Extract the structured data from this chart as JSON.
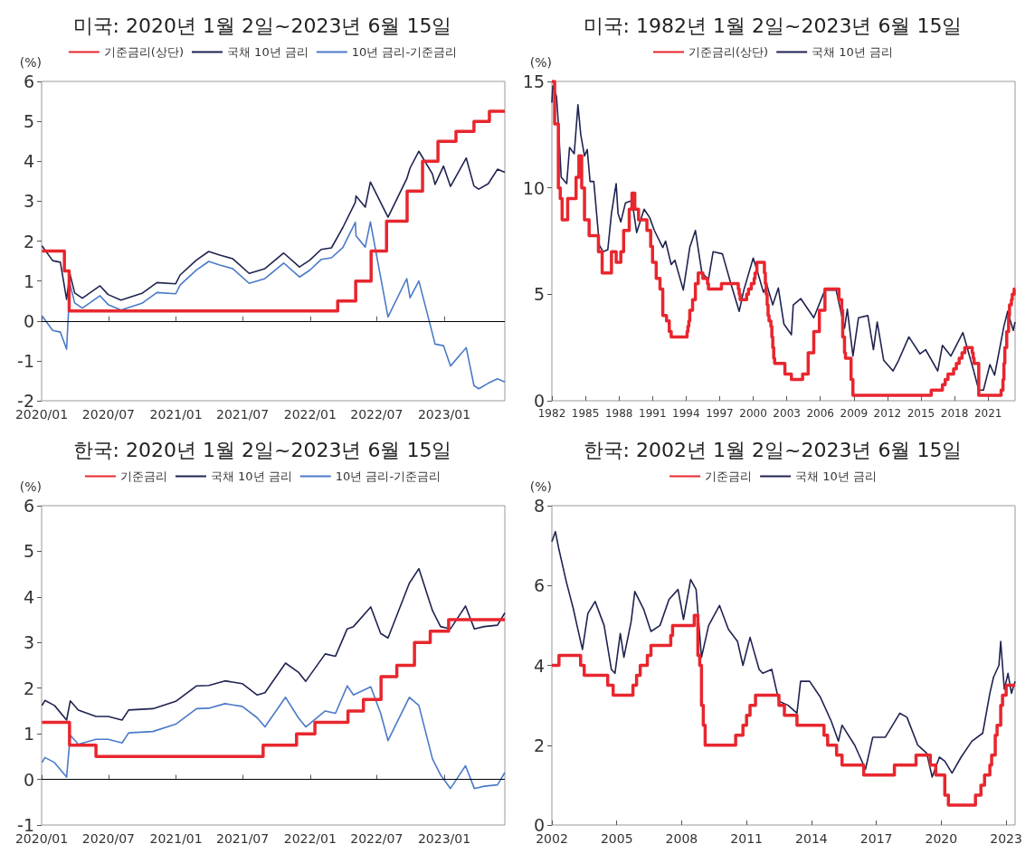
{
  "chart_data": [
    {
      "type": "line",
      "title": "미국: 2020년 1월 2일~2023년 6월 15일",
      "ylabel": "(%)",
      "xlim": [
        "2020-01",
        "2023-06-15"
      ],
      "xticks": [
        {
          "value": "2020-01",
          "label": "2020/01"
        },
        {
          "value": "2020-07",
          "label": "2020/07"
        },
        {
          "value": "2021-01",
          "label": "2021/01"
        },
        {
          "value": "2021-07",
          "label": "2021/07"
        },
        {
          "value": "2022-01",
          "label": "2022/01"
        },
        {
          "value": "2022-07",
          "label": "2022/07"
        },
        {
          "value": "2023-01",
          "label": "2023/01"
        }
      ],
      "ylim": [
        -2,
        6
      ],
      "yticks": [
        -2,
        -1,
        0,
        1,
        2,
        3,
        4,
        5,
        6
      ],
      "legend": "top",
      "grid": false,
      "ref_lines": [
        {
          "axis": "y",
          "value": 0,
          "color": "#000000"
        }
      ],
      "series": [
        {
          "name": "기준금리(상단)",
          "type": "step",
          "color": "#e8262e",
          "x": [
            "2020-01-02",
            "2020-03-03",
            "2020-03-16",
            "2022-03-17",
            "2022-05-05",
            "2022-06-16",
            "2022-07-28",
            "2022-09-22",
            "2022-11-03",
            "2022-12-15",
            "2023-02-02",
            "2023-03-23",
            "2023-05-04",
            "2023-06-15"
          ],
          "values": [
            1.75,
            1.25,
            0.25,
            0.5,
            1.0,
            1.75,
            2.5,
            3.25,
            4.0,
            4.5,
            4.75,
            5.0,
            5.25,
            5.25
          ]
        },
        {
          "name": "국채 10년 금리",
          "type": "line",
          "color": "#1f2350",
          "x": [
            "2020-01-02",
            "2020-01-31",
            "2020-02-21",
            "2020-03-09",
            "2020-03-18",
            "2020-03-31",
            "2020-04-21",
            "2020-06-08",
            "2020-06-30",
            "2020-08-04",
            "2020-09-30",
            "2020-11-10",
            "2020-12-31",
            "2021-01-12",
            "2021-02-25",
            "2021-03-31",
            "2021-04-30",
            "2021-06-04",
            "2021-07-19",
            "2021-08-31",
            "2021-10-21",
            "2021-12-03",
            "2021-12-31",
            "2022-01-31",
            "2022-02-28",
            "2022-03-31",
            "2022-05-04",
            "2022-05-06",
            "2022-05-31",
            "2022-06-14",
            "2022-08-01",
            "2022-09-21",
            "2022-09-30",
            "2022-10-24",
            "2022-11-30",
            "2022-12-07",
            "2022-12-30",
            "2023-01-18",
            "2023-03-02",
            "2023-03-23",
            "2023-04-05",
            "2023-05-01",
            "2023-05-26",
            "2023-06-15"
          ],
          "values": [
            1.88,
            1.51,
            1.47,
            0.54,
            1.18,
            0.7,
            0.57,
            0.88,
            0.66,
            0.52,
            0.69,
            0.96,
            0.93,
            1.15,
            1.52,
            1.74,
            1.65,
            1.56,
            1.19,
            1.31,
            1.7,
            1.35,
            1.52,
            1.79,
            1.83,
            2.34,
            2.97,
            3.13,
            2.85,
            3.48,
            2.6,
            3.56,
            3.83,
            4.25,
            3.68,
            3.42,
            3.88,
            3.37,
            4.08,
            3.38,
            3.3,
            3.44,
            3.8,
            3.72
          ]
        },
        {
          "name": "10년 금리-기준금리",
          "type": "line",
          "color": "#4a7ac8",
          "x": [
            "2020-01-02",
            "2020-01-31",
            "2020-02-21",
            "2020-03-09",
            "2020-03-18",
            "2020-03-31",
            "2020-04-21",
            "2020-06-08",
            "2020-06-30",
            "2020-08-04",
            "2020-09-30",
            "2020-11-10",
            "2020-12-31",
            "2021-01-12",
            "2021-02-25",
            "2021-03-31",
            "2021-04-30",
            "2021-06-04",
            "2021-07-19",
            "2021-08-31",
            "2021-10-21",
            "2021-12-03",
            "2021-12-31",
            "2022-01-31",
            "2022-02-28",
            "2022-03-31",
            "2022-05-04",
            "2022-05-06",
            "2022-05-31",
            "2022-06-14",
            "2022-08-01",
            "2022-09-21",
            "2022-09-30",
            "2022-10-24",
            "2022-11-30",
            "2022-12-07",
            "2022-12-30",
            "2023-01-18",
            "2023-03-02",
            "2023-03-23",
            "2023-04-05",
            "2023-05-01",
            "2023-05-26",
            "2023-06-15"
          ],
          "values": [
            0.13,
            -0.24,
            -0.28,
            -0.71,
            0.93,
            0.45,
            0.32,
            0.63,
            0.41,
            0.27,
            0.44,
            0.71,
            0.68,
            0.9,
            1.27,
            1.49,
            1.4,
            1.31,
            0.94,
            1.06,
            1.45,
            1.1,
            1.27,
            1.54,
            1.58,
            1.84,
            2.47,
            2.13,
            1.85,
            2.48,
            0.1,
            1.06,
            0.58,
            1.0,
            -0.32,
            -0.58,
            -0.62,
            -1.13,
            -0.67,
            -1.62,
            -1.7,
            -1.56,
            -1.45,
            -1.53
          ]
        }
      ]
    },
    {
      "type": "line",
      "title": "미국: 1982년 1월 2일~2023년 6월 15일",
      "ylabel": "(%)",
      "xlim": [
        "1982-01",
        "2023-06"
      ],
      "xticks": [
        "1982",
        "1985",
        "1988",
        "1991",
        "1994",
        "1997",
        "2000",
        "2003",
        "2006",
        "2009",
        "2012",
        "2015",
        "2018",
        "2021"
      ],
      "ylim": [
        0,
        15
      ],
      "yticks": [
        0,
        5,
        10,
        15
      ],
      "legend": "top",
      "grid": false,
      "series": [
        {
          "name": "기준금리(상단)",
          "type": "step",
          "color": "#e8262e",
          "x": [
            "1982-01",
            "1982-04",
            "1982-08",
            "1982-10",
            "1982-12",
            "1983-06",
            "1984-03",
            "1984-06",
            "1984-09",
            "1984-12",
            "1985-05",
            "1986-03",
            "1986-07",
            "1987-05",
            "1987-10",
            "1988-03",
            "1988-06",
            "1988-12",
            "1989-03",
            "1989-06",
            "1989-10",
            "1990-07",
            "1990-11",
            "1991-01",
            "1991-05",
            "1991-09",
            "1991-12",
            "1992-04",
            "1992-07",
            "1992-09",
            "1994-02",
            "1994-03",
            "1994-04",
            "1994-05",
            "1994-08",
            "1994-11",
            "1995-02",
            "1995-07",
            "1995-12",
            "1996-01",
            "1997-03",
            "1998-09",
            "1998-10",
            "1998-11",
            "1999-06",
            "1999-08",
            "1999-11",
            "2000-02",
            "2000-03",
            "2000-05",
            "2001-01",
            "2001-02",
            "2001-03",
            "2001-04",
            "2001-05",
            "2001-06",
            "2001-08",
            "2001-09",
            "2001-10",
            "2001-11",
            "2001-12",
            "2002-11",
            "2003-06",
            "2004-06",
            "2004-12",
            "2005-06",
            "2005-12",
            "2006-06",
            "2007-09",
            "2007-12",
            "2008-01",
            "2008-03",
            "2008-04",
            "2008-10",
            "2008-12",
            "2015-12",
            "2016-12",
            "2017-03",
            "2017-06",
            "2017-12",
            "2018-03",
            "2018-06",
            "2018-09",
            "2018-12",
            "2019-08",
            "2019-09",
            "2019-10",
            "2020-03",
            "2022-03",
            "2022-05",
            "2022-06",
            "2022-07",
            "2022-09",
            "2022-11",
            "2022-12",
            "2023-02",
            "2023-03",
            "2023-05",
            "2023-06"
          ],
          "values": [
            15,
            13,
            10,
            9.5,
            8.5,
            9.5,
            10.5,
            11.5,
            10,
            8.5,
            7.75,
            7,
            6,
            7,
            6.5,
            7,
            8,
            9,
            9.75,
            9,
            8.5,
            8,
            7.25,
            6.5,
            5.75,
            5.25,
            4,
            3.75,
            3.25,
            3,
            3.25,
            3.5,
            3.75,
            4.25,
            4.75,
            5.5,
            6,
            5.75,
            5.5,
            5.25,
            5.5,
            5.25,
            5,
            4.75,
            5,
            5.25,
            5.5,
            5.75,
            6,
            6.5,
            6,
            5.5,
            5,
            4.5,
            4,
            3.75,
            3.5,
            3,
            2.5,
            2,
            1.75,
            1.25,
            1,
            1.25,
            2.25,
            3.25,
            4.25,
            5.25,
            4.75,
            4.25,
            3,
            2.25,
            2,
            1,
            0.25,
            0.5,
            0.75,
            1,
            1.25,
            1.5,
            1.75,
            2,
            2.25,
            2.5,
            2.25,
            2,
            1.75,
            0.25,
            0.5,
            1,
            1.75,
            2.5,
            3.25,
            4,
            4.5,
            4.75,
            5,
            5.25,
            5.25
          ]
        },
        {
          "name": "국채 10년 금리",
          "type": "line",
          "color": "#1f2350",
          "x": [
            "1982-01",
            "1982-02",
            "1982-06",
            "1982-08",
            "1982-11",
            "1983-01",
            "1983-05",
            "1983-08",
            "1984-01",
            "1984-05",
            "1984-08",
            "1984-12",
            "1985-03",
            "1985-06",
            "1985-10",
            "1986-04",
            "1986-08",
            "1987-01",
            "1987-05",
            "1987-10",
            "1987-12",
            "1988-03",
            "1988-08",
            "1989-03",
            "1989-08",
            "1990-04",
            "1990-10",
            "1991-03",
            "1991-12",
            "1992-03",
            "1992-09",
            "1993-01",
            "1993-10",
            "1994-05",
            "1994-11",
            "1995-06",
            "1996-01",
            "1996-06",
            "1997-04",
            "1998-01",
            "1998-10",
            "1999-03",
            "2000-01",
            "2000-06",
            "2000-12",
            "2001-04",
            "2001-10",
            "2002-04",
            "2002-10",
            "2003-06",
            "2003-08",
            "2004-04",
            "2005-06",
            "2006-06",
            "2007-06",
            "2008-03",
            "2008-06",
            "2008-12",
            "2009-06",
            "2010-04",
            "2010-10",
            "2011-02",
            "2011-09",
            "2012-07",
            "2013-01",
            "2013-12",
            "2014-12",
            "2015-06",
            "2016-07",
            "2016-12",
            "2017-09",
            "2018-10",
            "2019-09",
            "2020-03",
            "2020-08",
            "2021-03",
            "2021-08",
            "2022-06",
            "2022-10",
            "2023-04",
            "2023-06"
          ],
          "values": [
            14,
            14.8,
            14.3,
            13,
            10.5,
            10.4,
            10.2,
            11.9,
            11.6,
            13.9,
            12.5,
            11.5,
            11.8,
            10.3,
            10.3,
            7.3,
            7,
            7.1,
            8.8,
            10.2,
            8.8,
            8.4,
            9.3,
            9.4,
            7.9,
            9,
            8.6,
            8,
            7.2,
            7.5,
            6.4,
            6.6,
            5.2,
            7.2,
            8,
            6,
            5.7,
            7,
            6.9,
            5.5,
            4.2,
            5.2,
            6.7,
            6,
            5.1,
            5.4,
            4.5,
            5.3,
            3.6,
            3.1,
            4.5,
            4.8,
            3.9,
            5.2,
            5.2,
            3.4,
            4.3,
            2.1,
            3.9,
            4,
            2.4,
            3.7,
            1.9,
            1.4,
            1.9,
            3,
            2.2,
            2.4,
            1.4,
            2.6,
            2.1,
            3.2,
            1.5,
            0.5,
            0.5,
            1.7,
            1.2,
            3.5,
            4.2,
            3.3,
            3.7
          ]
        }
      ]
    },
    {
      "type": "line",
      "title": "한국: 2020년 1월 2일~2023년 6월 15일",
      "ylabel": "(%)",
      "xlim": [
        "2020-01",
        "2023-06-15"
      ],
      "xticks": [
        {
          "value": "2020-01",
          "label": "2020/01"
        },
        {
          "value": "2020-07",
          "label": "2020/07"
        },
        {
          "value": "2021-01",
          "label": "2021/01"
        },
        {
          "value": "2021-07",
          "label": "2021/07"
        },
        {
          "value": "2022-01",
          "label": "2022/01"
        },
        {
          "value": "2022-07",
          "label": "2022/07"
        },
        {
          "value": "2023-01",
          "label": "2023/01"
        }
      ],
      "ylim": [
        -1,
        6
      ],
      "yticks": [
        -1,
        0,
        1,
        2,
        3,
        4,
        5,
        6
      ],
      "legend": "top",
      "grid": false,
      "ref_lines": [
        {
          "axis": "y",
          "value": 0,
          "color": "#000000"
        }
      ],
      "series": [
        {
          "name": "기준금리",
          "type": "step",
          "color": "#e8262e",
          "x": [
            "2020-01-02",
            "2020-03-17",
            "2020-05-28",
            "2021-08-26",
            "2021-11-25",
            "2022-01-14",
            "2022-04-14",
            "2022-05-26",
            "2022-07-13",
            "2022-08-25",
            "2022-10-12",
            "2022-11-24",
            "2023-01-13",
            "2023-06-15"
          ],
          "values": [
            1.25,
            0.75,
            0.5,
            0.75,
            1.0,
            1.25,
            1.5,
            1.75,
            2.25,
            2.5,
            3.0,
            3.25,
            3.5,
            3.5
          ]
        },
        {
          "name": "국채 10년 금리",
          "type": "line",
          "color": "#1f2350",
          "x": [
            "2020-01-02",
            "2020-01-10",
            "2020-02-05",
            "2020-03-09",
            "2020-03-19",
            "2020-04-10",
            "2020-05-28",
            "2020-06-30",
            "2020-08-07",
            "2020-08-25",
            "2020-10-30",
            "2020-12-31",
            "2021-02-26",
            "2021-03-31",
            "2021-05-14",
            "2021-06-30",
            "2021-08-10",
            "2021-08-31",
            "2021-10-26",
            "2021-11-30",
            "2021-12-20",
            "2022-02-11",
            "2022-03-11",
            "2022-04-12",
            "2022-04-29",
            "2022-06-15",
            "2022-07-12",
            "2022-08-01",
            "2022-09-28",
            "2022-10-24",
            "2022-11-30",
            "2022-12-22",
            "2023-01-18",
            "2023-02-28",
            "2023-03-24",
            "2023-04-20",
            "2023-05-26",
            "2023-06-15"
          ],
          "values": [
            1.62,
            1.73,
            1.62,
            1.3,
            1.72,
            1.52,
            1.38,
            1.38,
            1.3,
            1.52,
            1.55,
            1.71,
            2.05,
            2.06,
            2.16,
            2.1,
            1.85,
            1.9,
            2.55,
            2.35,
            2.15,
            2.75,
            2.7,
            3.3,
            3.35,
            3.78,
            3.2,
            3.1,
            4.3,
            4.62,
            3.7,
            3.35,
            3.3,
            3.8,
            3.3,
            3.35,
            3.38,
            3.65
          ]
        },
        {
          "name": "10년 금리-기준금리",
          "type": "line",
          "color": "#4a7ac8",
          "x": [
            "2020-01-02",
            "2020-01-10",
            "2020-02-05",
            "2020-03-09",
            "2020-03-19",
            "2020-04-10",
            "2020-05-28",
            "2020-06-30",
            "2020-08-07",
            "2020-08-25",
            "2020-10-30",
            "2020-12-31",
            "2021-02-26",
            "2021-03-31",
            "2021-05-14",
            "2021-06-30",
            "2021-08-10",
            "2021-08-31",
            "2021-10-26",
            "2021-11-30",
            "2021-12-20",
            "2022-02-11",
            "2022-03-11",
            "2022-04-12",
            "2022-04-29",
            "2022-06-15",
            "2022-07-12",
            "2022-08-01",
            "2022-09-28",
            "2022-10-24",
            "2022-11-30",
            "2022-12-22",
            "2023-01-18",
            "2023-02-28",
            "2023-03-24",
            "2023-04-20",
            "2023-05-26",
            "2023-06-15"
          ],
          "values": [
            0.37,
            0.48,
            0.37,
            0.05,
            0.97,
            0.77,
            0.88,
            0.88,
            0.8,
            1.02,
            1.05,
            1.21,
            1.55,
            1.56,
            1.66,
            1.6,
            1.35,
            1.15,
            1.8,
            1.35,
            1.15,
            1.5,
            1.45,
            2.05,
            1.85,
            2.03,
            1.45,
            0.85,
            1.8,
            1.62,
            0.45,
            0.1,
            -0.2,
            0.3,
            -0.2,
            -0.15,
            -0.12,
            0.15
          ]
        }
      ]
    },
    {
      "type": "line",
      "title": "한국: 2002년 1월 2일~2023년 6월 15일",
      "ylabel": "(%)",
      "xlim": [
        "2002-01",
        "2023-06"
      ],
      "xticks": [
        "2002",
        "2005",
        "2008",
        "2011",
        "2014",
        "2017",
        "2020",
        "2023"
      ],
      "ylim": [
        0,
        8
      ],
      "yticks": [
        0,
        2,
        4,
        6,
        8
      ],
      "legend": "top",
      "grid": false,
      "series": [
        {
          "name": "기준금리",
          "type": "step",
          "color": "#e8262e",
          "x": [
            "2002-01",
            "2002-05",
            "2003-05",
            "2003-07",
            "2004-08",
            "2004-11",
            "2005-10",
            "2005-12",
            "2006-02",
            "2006-06",
            "2006-08",
            "2007-07",
            "2007-08",
            "2008-08",
            "2008-10",
            "2008-11",
            "2008-12",
            "2009-01",
            "2009-02",
            "2010-07",
            "2010-11",
            "2011-01",
            "2011-03",
            "2011-06",
            "2012-07",
            "2012-10",
            "2013-05",
            "2014-08",
            "2014-10",
            "2015-03",
            "2015-06",
            "2016-06",
            "2017-11",
            "2018-11",
            "2019-07",
            "2019-10",
            "2020-03",
            "2020-05",
            "2021-08",
            "2021-11",
            "2022-01",
            "2022-04",
            "2022-05",
            "2022-07",
            "2022-08",
            "2022-10",
            "2022-11",
            "2023-01",
            "2023-06"
          ],
          "values": [
            4,
            4.25,
            4,
            3.75,
            3.5,
            3.25,
            3.5,
            3.75,
            4,
            4.25,
            4.5,
            4.75,
            5,
            5.25,
            4.25,
            4,
            3,
            2.5,
            2,
            2.25,
            2.5,
            2.75,
            3,
            3.25,
            3,
            2.75,
            2.5,
            2.25,
            2,
            1.75,
            1.5,
            1.25,
            1.5,
            1.75,
            1.5,
            1.25,
            0.75,
            0.5,
            0.75,
            1,
            1.25,
            1.5,
            1.75,
            2.25,
            2.5,
            3,
            3.25,
            3.5,
            3.5
          ]
        },
        {
          "name": "국채 10년 금리",
          "type": "line",
          "color": "#1f2350",
          "x": [
            "2002-01",
            "2002-03",
            "2002-05",
            "2002-09",
            "2003-01",
            "2003-03",
            "2003-06",
            "2003-09",
            "2004-01",
            "2004-06",
            "2004-10",
            "2004-12",
            "2005-03",
            "2005-05",
            "2005-09",
            "2005-11",
            "2006-04",
            "2006-08",
            "2007-01",
            "2007-06",
            "2007-11",
            "2008-02",
            "2008-06",
            "2008-09",
            "2008-12",
            "2009-04",
            "2009-10",
            "2010-03",
            "2010-08",
            "2010-11",
            "2011-03",
            "2011-08",
            "2011-10",
            "2012-03",
            "2012-07",
            "2012-12",
            "2013-05",
            "2013-07",
            "2013-12",
            "2014-06",
            "2014-12",
            "2015-04",
            "2015-06",
            "2016-01",
            "2016-07",
            "2016-11",
            "2017-06",
            "2018-02",
            "2018-06",
            "2018-12",
            "2019-05",
            "2019-08",
            "2019-12",
            "2020-03",
            "2020-07",
            "2020-12",
            "2021-06",
            "2021-12",
            "2022-04",
            "2022-06",
            "2022-09",
            "2022-10",
            "2022-12",
            "2023-02",
            "2023-04",
            "2023-06"
          ],
          "values": [
            7.1,
            7.35,
            6.9,
            6.1,
            5.4,
            5,
            4.4,
            5.3,
            5.6,
            5,
            3.9,
            3.8,
            4.8,
            4.2,
            5.1,
            5.85,
            5.4,
            4.85,
            5,
            5.65,
            5.9,
            5.15,
            6.15,
            5.9,
            4.2,
            5,
            5.5,
            4.9,
            4.6,
            4,
            4.7,
            3.9,
            3.8,
            3.9,
            3.1,
            3,
            2.8,
            3.6,
            3.6,
            3.2,
            2.6,
            2.1,
            2.5,
            2,
            1.4,
            2.2,
            2.2,
            2.8,
            2.7,
            2,
            1.8,
            1.2,
            1.7,
            1.6,
            1.3,
            1.7,
            2.1,
            2.3,
            3.3,
            3.7,
            4,
            4.6,
            3.4,
            3.8,
            3.3,
            3.6
          ]
        }
      ]
    }
  ]
}
